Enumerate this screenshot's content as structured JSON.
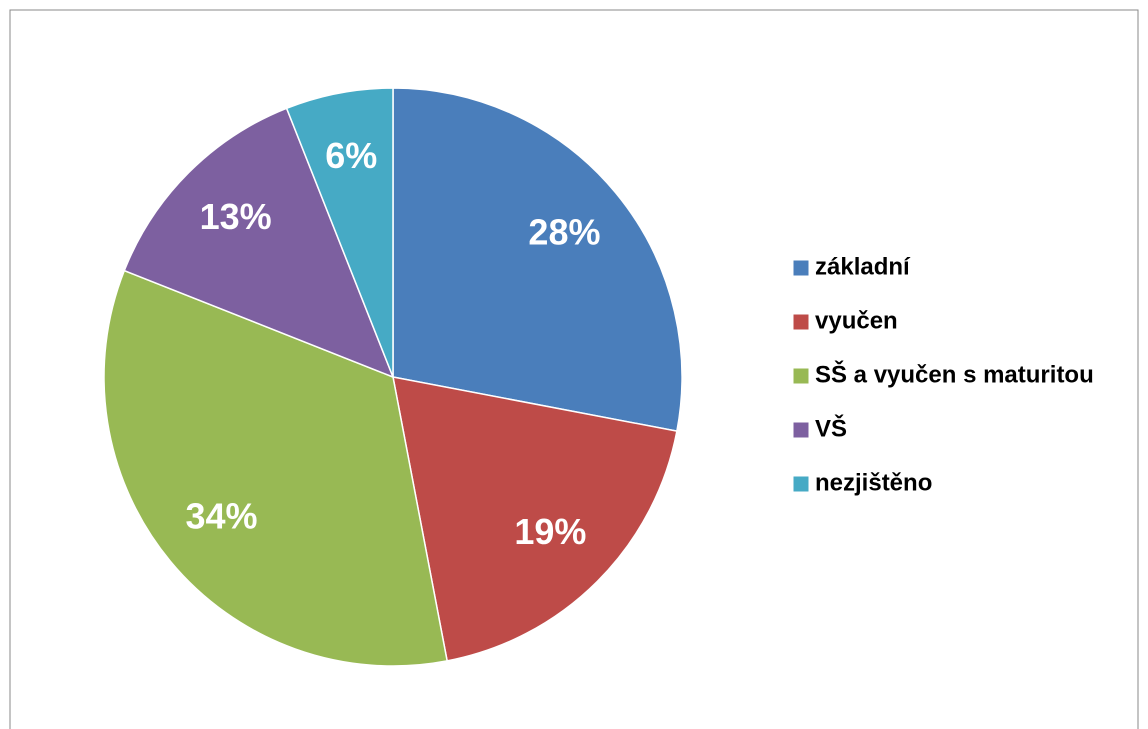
{
  "chart_data": {
    "type": "pie",
    "categories": [
      "základní",
      "vyučen",
      "SŠ a vyučen s maturitou",
      "VŠ",
      "nezjištěno"
    ],
    "values": [
      28,
      19,
      34,
      13,
      6
    ],
    "value_labels": [
      "28%",
      "19%",
      "34%",
      "13%",
      "6%"
    ],
    "colors": [
      "#4a7ebb",
      "#be4b48",
      "#98b954",
      "#7d60a0",
      "#46aac5"
    ],
    "legend": "right"
  }
}
